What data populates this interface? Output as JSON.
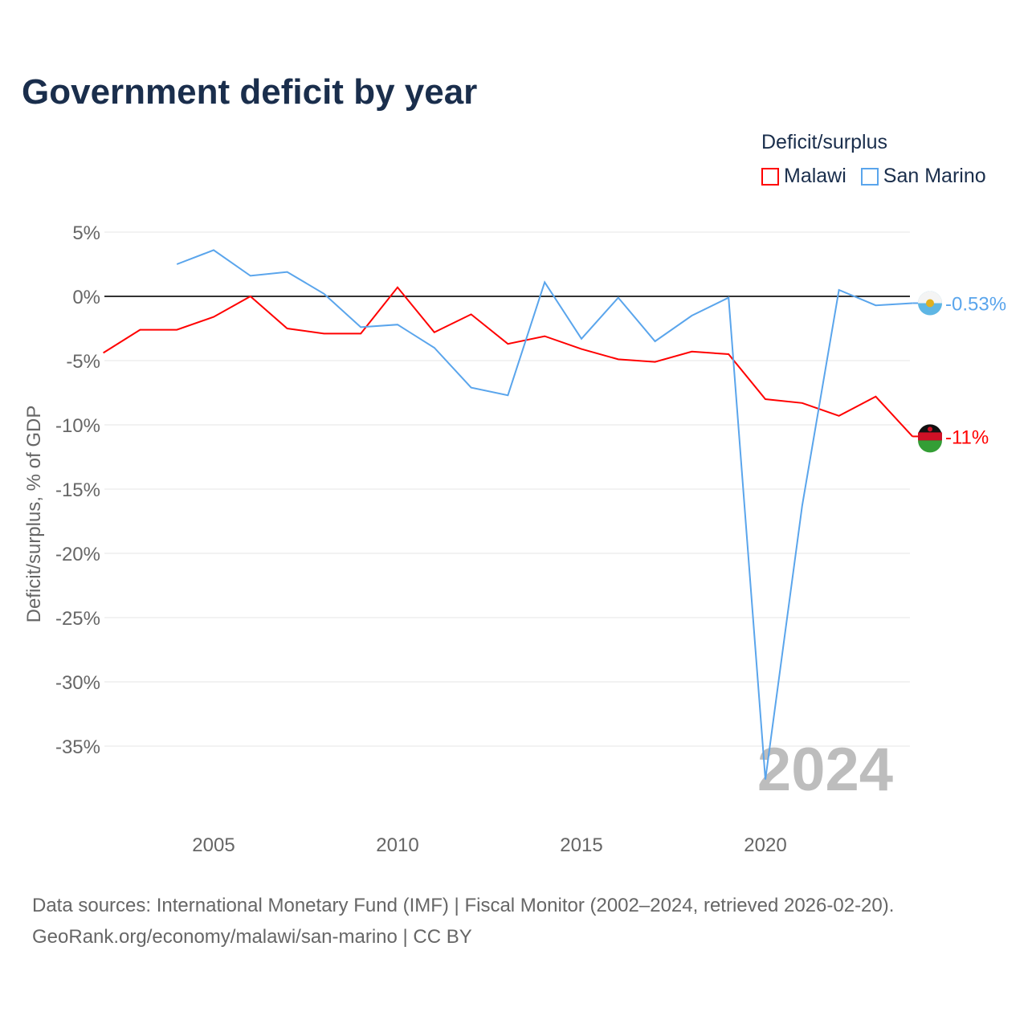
{
  "chart_data": {
    "type": "line",
    "title": "Government deficit by year",
    "ylabel": "Deficit/surplus, % of GDP",
    "xlabel": "",
    "xlim": [
      2002,
      2024
    ],
    "ylim": [
      -40,
      6
    ],
    "x_ticks": [
      2005,
      2010,
      2015,
      2020
    ],
    "y_ticks": [
      5,
      0,
      -5,
      -10,
      -15,
      -20,
      -25,
      -30,
      -35
    ],
    "y_tick_labels": [
      "5%",
      "0%",
      "-5%",
      "-10%",
      "-15%",
      "-20%",
      "-25%",
      "-30%",
      "-35%"
    ],
    "legend_title": "Deficit/surplus",
    "legend_position": "top-right",
    "watermark_year": "2024",
    "series": [
      {
        "name": "Malawi",
        "color": "#ff0000",
        "end_label": "-11%",
        "x": [
          2002,
          2003,
          2004,
          2005,
          2006,
          2007,
          2008,
          2009,
          2010,
          2011,
          2012,
          2013,
          2014,
          2015,
          2016,
          2017,
          2018,
          2019,
          2020,
          2021,
          2022,
          2023,
          2024
        ],
        "values": [
          -4.4,
          -2.6,
          -2.6,
          -1.6,
          0.0,
          -2.5,
          -2.9,
          -2.9,
          0.7,
          -2.8,
          -1.4,
          -3.7,
          -3.1,
          -4.1,
          -4.9,
          -5.1,
          -4.3,
          -4.5,
          -8.0,
          -8.3,
          -9.3,
          -7.8,
          -10.9
        ]
      },
      {
        "name": "San Marino",
        "color": "#5aa5ec",
        "end_label": "-0.53%",
        "x": [
          2004,
          2005,
          2006,
          2007,
          2008,
          2009,
          2010,
          2011,
          2012,
          2013,
          2014,
          2015,
          2016,
          2017,
          2018,
          2019,
          2020,
          2021,
          2022,
          2023,
          2024
        ],
        "values": [
          2.5,
          3.6,
          1.6,
          1.9,
          0.2,
          -2.4,
          -2.2,
          -4.0,
          -7.1,
          -7.7,
          1.1,
          -3.3,
          -0.1,
          -3.5,
          -1.5,
          -0.1,
          -37.6,
          -16.3,
          0.5,
          -0.7,
          -0.53
        ]
      }
    ]
  },
  "footer": {
    "line1": "Data sources: International Monetary Fund (IMF) | Fiscal Monitor (2002–2024, retrieved 2026-02-20).",
    "line2": "GeoRank.org/economy/malawi/san-marino | CC BY"
  }
}
